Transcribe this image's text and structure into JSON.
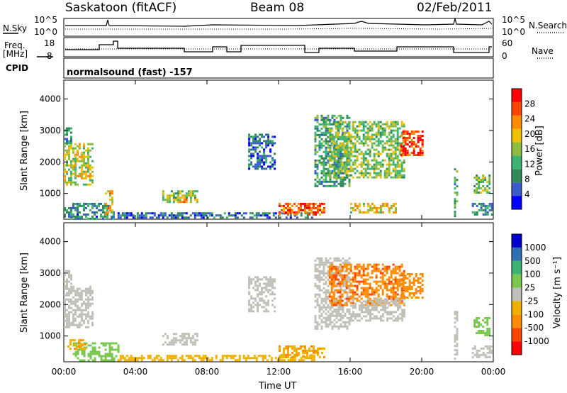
{
  "header": {
    "station": "Saskatoon (fitACF)",
    "beam": "Beam 08",
    "date": "02/Feb/2011"
  },
  "noise_panel": {
    "left_label": "N.Sky",
    "right_label": "N.Search",
    "ticks": {
      "top": "10^5",
      "bottom": "10^0"
    }
  },
  "freq_panel": {
    "left_label_1": "Freq.",
    "left_label_2": "[MHz]",
    "right_label": "Nave",
    "left_ticks": [
      "18",
      "8"
    ],
    "right_ticks": [
      "60",
      "0"
    ]
  },
  "cpid": {
    "label": "CPID",
    "program": "normalsound (fast) -157"
  },
  "colors": {
    "power_scale": [
      "#0000ff",
      "#3a5bcc",
      "#2e8b57",
      "#3cb371",
      "#8fbc3f",
      "#f0c000",
      "#ff8c00",
      "#ff4500",
      "#ff0000"
    ],
    "velocity_scale": [
      "#ff0000",
      "#ff4500",
      "#ff8c00",
      "#f0b000",
      "#c0c0b8",
      "#78c850",
      "#3cb371",
      "#2e6fb0",
      "#0000cc"
    ],
    "ground_scatter": "#c0c0b8"
  },
  "chart_data": [
    {
      "type": "heatmap",
      "title": "",
      "xlabel": "Time UT",
      "ylabel": "Slant Range [km]",
      "xlim": [
        "00:00",
        "24:00"
      ],
      "ylim": [
        180,
        4600
      ],
      "x_ticks": [
        "00:00",
        "04:00",
        "08:00",
        "12:00",
        "16:00",
        "20:00",
        "00:00"
      ],
      "y_ticks": [
        "1000",
        "2000",
        "3000",
        "4000"
      ],
      "colorbar": {
        "label": "Power [dB]",
        "ticks": [
          "4",
          "8",
          "12",
          "16",
          "20",
          "24",
          "28"
        ],
        "range": [
          0,
          30
        ]
      },
      "regions": [
        {
          "t0": 0.0,
          "t1": 1.6,
          "r0": 1300,
          "r1": 2600,
          "level": 16
        },
        {
          "t0": 0.0,
          "t1": 0.4,
          "r0": 2600,
          "r1": 3100,
          "level": 8
        },
        {
          "t0": 0.0,
          "t1": 2.8,
          "r0": 200,
          "r1": 700,
          "level": 8
        },
        {
          "t0": 2.3,
          "t1": 2.7,
          "r0": 300,
          "r1": 1100,
          "level": 20
        },
        {
          "t0": 5.5,
          "t1": 7.5,
          "r0": 700,
          "r1": 1100,
          "level": 14
        },
        {
          "t0": 6.2,
          "t1": 6.9,
          "r0": 700,
          "r1": 900,
          "level": 22
        },
        {
          "t0": 3.0,
          "t1": 14.0,
          "r0": 200,
          "r1": 400,
          "level": 6
        },
        {
          "t0": 12.0,
          "t1": 14.5,
          "r0": 350,
          "r1": 700,
          "level": 24
        },
        {
          "t0": 10.3,
          "t1": 11.8,
          "r0": 1800,
          "r1": 2900,
          "level": 6
        },
        {
          "t0": 14.0,
          "t1": 16.0,
          "r0": 1200,
          "r1": 3500,
          "level": 10
        },
        {
          "t0": 14.8,
          "t1": 19.0,
          "r0": 1500,
          "r1": 3300,
          "level": 14
        },
        {
          "t0": 16.0,
          "t1": 18.5,
          "r0": 400,
          "r1": 700,
          "level": 18
        },
        {
          "t0": 18.8,
          "t1": 20.0,
          "r0": 2200,
          "r1": 3000,
          "level": 26
        },
        {
          "t0": 21.8,
          "t1": 22.0,
          "r0": 300,
          "r1": 1800,
          "level": 10
        },
        {
          "t0": 22.9,
          "t1": 23.8,
          "r0": 1000,
          "r1": 1600,
          "level": 14
        },
        {
          "t0": 22.8,
          "t1": 23.9,
          "r0": 300,
          "r1": 700,
          "level": 8
        }
      ]
    },
    {
      "type": "heatmap",
      "title": "",
      "xlabel": "Time UT",
      "ylabel": "Slant Range [km]",
      "xlim": [
        "00:00",
        "24:00"
      ],
      "ylim": [
        180,
        4600
      ],
      "x_ticks": [
        "00:00",
        "04:00",
        "08:00",
        "12:00",
        "16:00",
        "20:00",
        "00:00"
      ],
      "y_ticks": [
        "1000",
        "2000",
        "3000",
        "4000"
      ],
      "colorbar": {
        "label": "Velocity [m s⁻¹]",
        "ticks": [
          "1000",
          "500",
          "100",
          "25",
          "-25",
          "-100",
          "-500",
          "-1000"
        ],
        "range": [
          -1000,
          1000
        ]
      },
      "regions": [
        {
          "t0": 0.0,
          "t1": 1.6,
          "r0": 1300,
          "r1": 2600,
          "level": 0
        },
        {
          "t0": 0.0,
          "t1": 0.4,
          "r0": 2600,
          "r1": 3100,
          "level": 0
        },
        {
          "t0": 0.5,
          "t1": 3.0,
          "r0": 250,
          "r1": 800,
          "level": 60
        },
        {
          "t0": 0.2,
          "t1": 1.2,
          "r0": 600,
          "r1": 900,
          "level": -80
        },
        {
          "t0": 5.5,
          "t1": 7.5,
          "r0": 700,
          "r1": 1100,
          "level": 0
        },
        {
          "t0": 3.0,
          "t1": 14.0,
          "r0": 200,
          "r1": 400,
          "level": -60
        },
        {
          "t0": 12.0,
          "t1": 14.5,
          "r0": 350,
          "r1": 700,
          "level": -80
        },
        {
          "t0": 10.3,
          "t1": 11.8,
          "r0": 1800,
          "r1": 2900,
          "level": 0
        },
        {
          "t0": 14.0,
          "t1": 16.0,
          "r0": 1200,
          "r1": 3500,
          "level": 0
        },
        {
          "t0": 14.8,
          "t1": 19.0,
          "r0": 2000,
          "r1": 3300,
          "level": -400
        },
        {
          "t0": 16.0,
          "t1": 19.0,
          "r0": 1500,
          "r1": 2200,
          "level": 0
        },
        {
          "t0": 18.8,
          "t1": 20.0,
          "r0": 2200,
          "r1": 3000,
          "level": -200
        },
        {
          "t0": 21.8,
          "t1": 22.0,
          "r0": 300,
          "r1": 1800,
          "level": 0
        },
        {
          "t0": 22.9,
          "t1": 23.8,
          "r0": 1000,
          "r1": 1600,
          "level": 60
        },
        {
          "t0": 22.8,
          "t1": 23.9,
          "r0": 300,
          "r1": 700,
          "level": 0
        }
      ]
    }
  ]
}
